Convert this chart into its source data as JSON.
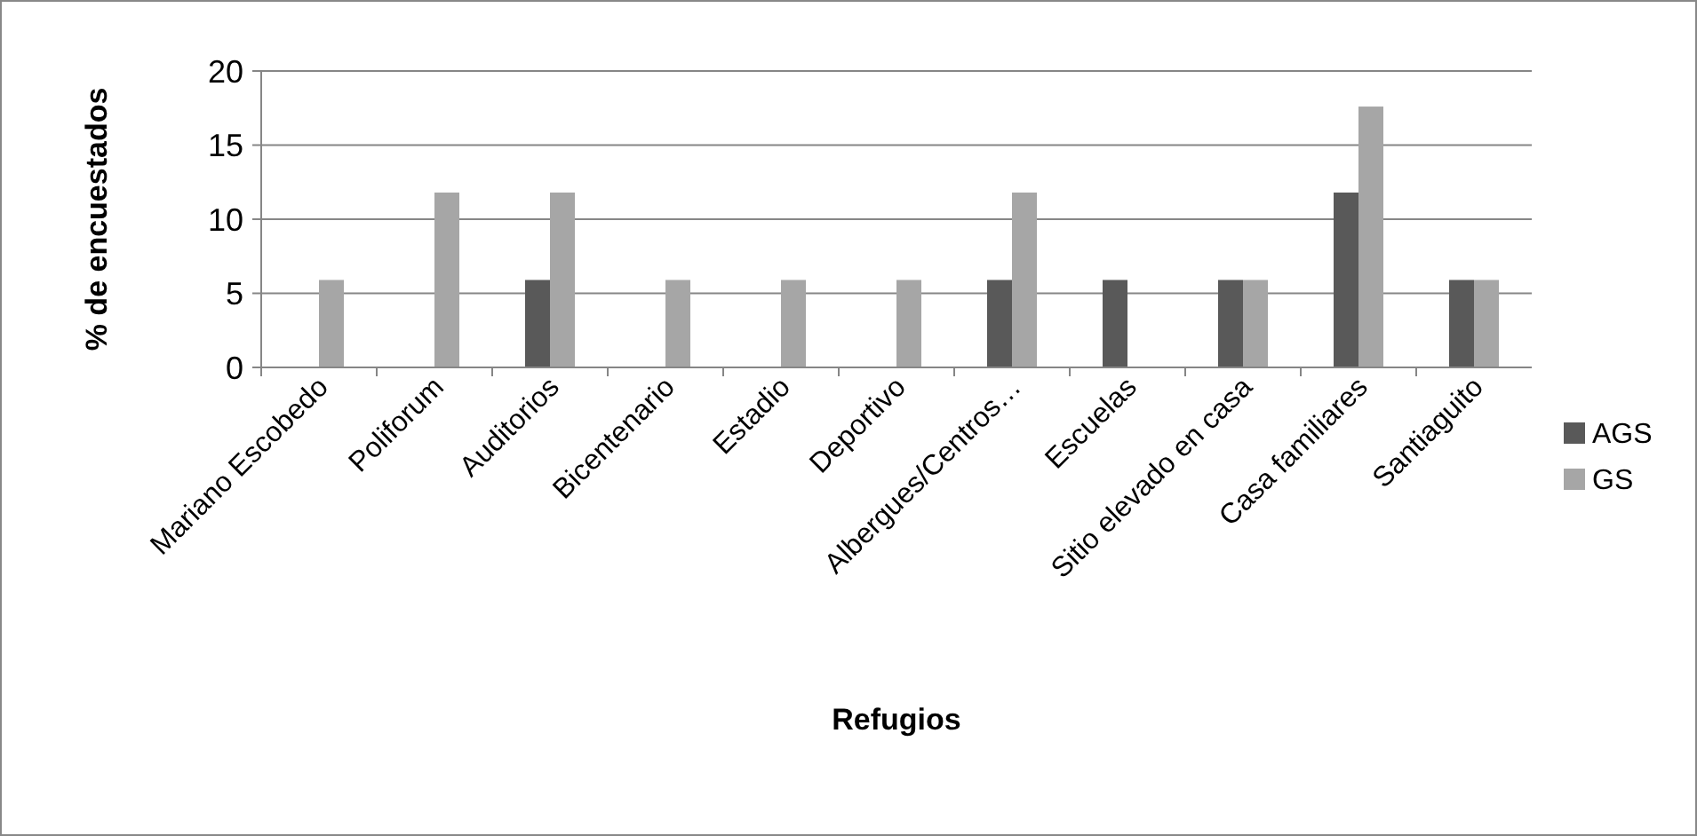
{
  "chart_data": {
    "type": "bar",
    "xlabel": "Refugios",
    "ylabel": "% de encuestados",
    "categories": [
      "Mariano Escobedo",
      "Poliforum",
      "Auditorios",
      "Bicentenario",
      "Estadio",
      "Deportivo",
      "Albergues/Centros…",
      "Escuelas",
      "Sitio elevado en casa",
      "Casa familiares",
      "Santiaguito"
    ],
    "series": [
      {
        "name": "AGS",
        "color": "#595959",
        "values": [
          0,
          0,
          5.9,
          0,
          0,
          0,
          5.9,
          5.9,
          5.9,
          11.8,
          5.9
        ]
      },
      {
        "name": "GS",
        "color": "#a6a6a6",
        "values": [
          5.9,
          11.8,
          11.8,
          5.9,
          5.9,
          5.9,
          11.8,
          0,
          5.9,
          17.6,
          5.9
        ]
      }
    ],
    "ylim": [
      0,
      20
    ],
    "yticks": [
      0,
      5,
      10,
      15,
      20
    ],
    "grid": "y",
    "legend": "right"
  }
}
